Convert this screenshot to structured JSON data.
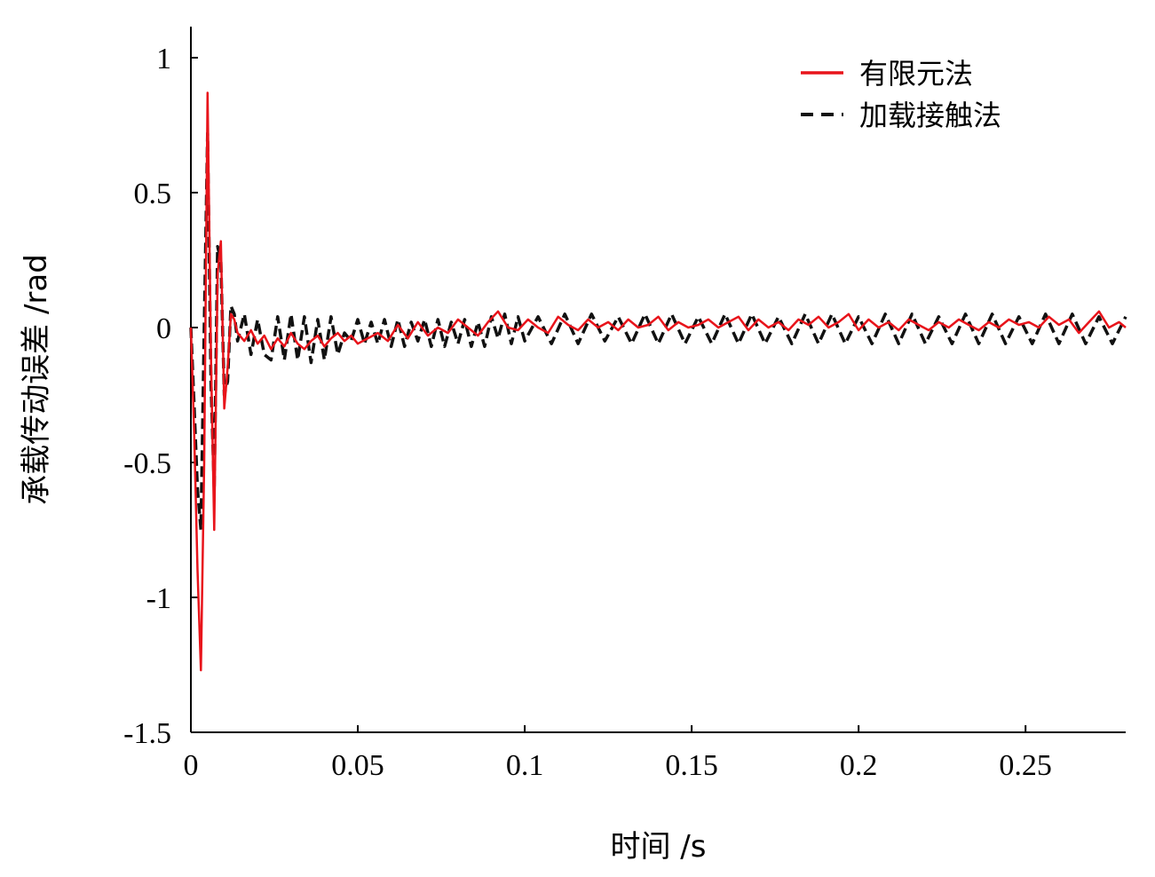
{
  "chart_data": {
    "type": "line",
    "title": "",
    "xlabel": "时间 /s",
    "ylabel": "承载传动误差 /rad",
    "xlim": [
      0,
      0.28
    ],
    "ylim": [
      -1.5,
      1.1
    ],
    "xticks": [
      0,
      0.05,
      0.1,
      0.15,
      0.2,
      0.25
    ],
    "xtick_labels": [
      "0",
      "0.05",
      "0.1",
      "0.15",
      "0.2",
      "0.25"
    ],
    "yticks": [
      -1.5,
      -1,
      -0.5,
      0,
      0.5,
      1
    ],
    "ytick_labels": [
      "-1.5",
      "-1",
      "-0.5",
      "0",
      "0.5",
      "1"
    ],
    "grid": false,
    "legend_position": "top-right",
    "series": [
      {
        "name": "有限元法",
        "color": "#e8141b",
        "dash": "solid",
        "x": [
          0,
          0.001,
          0.002,
          0.003,
          0.004,
          0.005,
          0.006,
          0.007,
          0.008,
          0.009,
          0.01,
          0.011,
          0.012,
          0.013,
          0.014,
          0.016,
          0.018,
          0.02,
          0.022,
          0.024,
          0.026,
          0.028,
          0.03,
          0.032,
          0.034,
          0.036,
          0.038,
          0.04,
          0.042,
          0.044,
          0.046,
          0.048,
          0.05,
          0.053,
          0.056,
          0.059,
          0.062,
          0.065,
          0.068,
          0.071,
          0.074,
          0.077,
          0.08,
          0.083,
          0.086,
          0.089,
          0.092,
          0.095,
          0.098,
          0.101,
          0.104,
          0.107,
          0.11,
          0.113,
          0.116,
          0.119,
          0.122,
          0.125,
          0.128,
          0.131,
          0.134,
          0.137,
          0.14,
          0.143,
          0.146,
          0.149,
          0.152,
          0.155,
          0.158,
          0.161,
          0.164,
          0.167,
          0.17,
          0.173,
          0.176,
          0.179,
          0.182,
          0.185,
          0.188,
          0.191,
          0.194,
          0.197,
          0.2,
          0.203,
          0.206,
          0.209,
          0.212,
          0.215,
          0.218,
          0.221,
          0.224,
          0.227,
          0.23,
          0.233,
          0.236,
          0.239,
          0.242,
          0.245,
          0.248,
          0.251,
          0.254,
          0.257,
          0.26,
          0.263,
          0.266,
          0.269,
          0.272,
          0.275,
          0.278,
          0.28
        ],
        "y": [
          0,
          -0.4,
          -0.9,
          -1.27,
          -0.5,
          0.87,
          -0.1,
          -0.75,
          0.2,
          0.32,
          -0.3,
          -0.15,
          0.05,
          0.03,
          -0.02,
          -0.05,
          -0.01,
          -0.06,
          -0.03,
          -0.08,
          -0.04,
          -0.07,
          -0.02,
          -0.06,
          -0.08,
          -0.05,
          -0.03,
          -0.07,
          -0.04,
          -0.02,
          -0.05,
          -0.03,
          -0.06,
          -0.04,
          -0.02,
          -0.05,
          0.01,
          -0.04,
          0.02,
          -0.03,
          0.0,
          -0.02,
          0.03,
          0.0,
          -0.03,
          0.02,
          0.06,
          0.0,
          -0.01,
          0.03,
          0.0,
          -0.02,
          0.04,
          0.01,
          -0.01,
          0.03,
          0.0,
          0.02,
          -0.01,
          0.03,
          0.0,
          0.01,
          0.04,
          -0.01,
          0.02,
          0.0,
          0.01,
          0.03,
          0.0,
          0.02,
          0.04,
          -0.01,
          0.03,
          0.0,
          0.02,
          -0.01,
          0.03,
          0.01,
          0.04,
          0.0,
          0.02,
          0.05,
          -0.01,
          0.03,
          0.0,
          0.02,
          -0.01,
          0.03,
          0.01,
          -0.01,
          0.02,
          0.0,
          0.03,
          0.01,
          -0.01,
          0.02,
          0.0,
          0.03,
          0.01,
          0.02,
          0.0,
          0.04,
          0.01,
          0.03,
          -0.02,
          0.02,
          0.06,
          0.0,
          0.02,
          0.0
        ]
      },
      {
        "name": "加载接触法",
        "color": "#111111",
        "dash": "dashed",
        "x": [
          0,
          0.001,
          0.002,
          0.003,
          0.004,
          0.005,
          0.006,
          0.007,
          0.008,
          0.009,
          0.01,
          0.011,
          0.012,
          0.013,
          0.014,
          0.016,
          0.018,
          0.02,
          0.022,
          0.024,
          0.026,
          0.028,
          0.03,
          0.032,
          0.034,
          0.036,
          0.038,
          0.04,
          0.042,
          0.044,
          0.046,
          0.048,
          0.05,
          0.052,
          0.054,
          0.056,
          0.058,
          0.06,
          0.062,
          0.064,
          0.066,
          0.068,
          0.07,
          0.072,
          0.074,
          0.076,
          0.078,
          0.08,
          0.082,
          0.084,
          0.086,
          0.088,
          0.09,
          0.092,
          0.094,
          0.096,
          0.098,
          0.1,
          0.104,
          0.108,
          0.112,
          0.116,
          0.12,
          0.124,
          0.128,
          0.132,
          0.136,
          0.14,
          0.144,
          0.148,
          0.152,
          0.156,
          0.16,
          0.164,
          0.168,
          0.172,
          0.176,
          0.18,
          0.184,
          0.188,
          0.192,
          0.196,
          0.2,
          0.204,
          0.208,
          0.212,
          0.216,
          0.22,
          0.224,
          0.228,
          0.232,
          0.236,
          0.24,
          0.244,
          0.248,
          0.252,
          0.256,
          0.26,
          0.264,
          0.268,
          0.272,
          0.276,
          0.28
        ],
        "y": [
          0,
          -0.3,
          -0.6,
          -0.75,
          0.0,
          0.72,
          -0.2,
          -0.6,
          0.3,
          0.25,
          -0.25,
          -0.2,
          0.08,
          0.05,
          -0.05,
          0.05,
          -0.1,
          0.03,
          -0.1,
          -0.12,
          0.04,
          -0.12,
          0.05,
          -0.12,
          0.04,
          -0.13,
          0.03,
          -0.12,
          0.04,
          -0.1,
          -0.02,
          -0.05,
          0.03,
          -0.06,
          0.02,
          -0.06,
          0.03,
          -0.07,
          0.03,
          -0.07,
          0.02,
          -0.05,
          0.03,
          -0.07,
          0.03,
          -0.07,
          0.02,
          -0.06,
          0.03,
          -0.07,
          0.02,
          -0.07,
          0.04,
          -0.04,
          0.05,
          -0.06,
          0.04,
          -0.05,
          0.04,
          -0.06,
          0.05,
          -0.06,
          0.05,
          -0.05,
          0.04,
          -0.06,
          0.05,
          -0.06,
          0.05,
          -0.06,
          0.04,
          -0.06,
          0.05,
          -0.06,
          0.05,
          -0.06,
          0.04,
          -0.06,
          0.05,
          -0.06,
          0.05,
          -0.06,
          0.04,
          -0.06,
          0.05,
          -0.06,
          0.05,
          -0.06,
          0.04,
          -0.06,
          0.05,
          -0.06,
          0.05,
          -0.06,
          0.04,
          -0.06,
          0.05,
          -0.06,
          0.05,
          -0.06,
          0.04,
          -0.06,
          0.04
        ]
      }
    ]
  }
}
